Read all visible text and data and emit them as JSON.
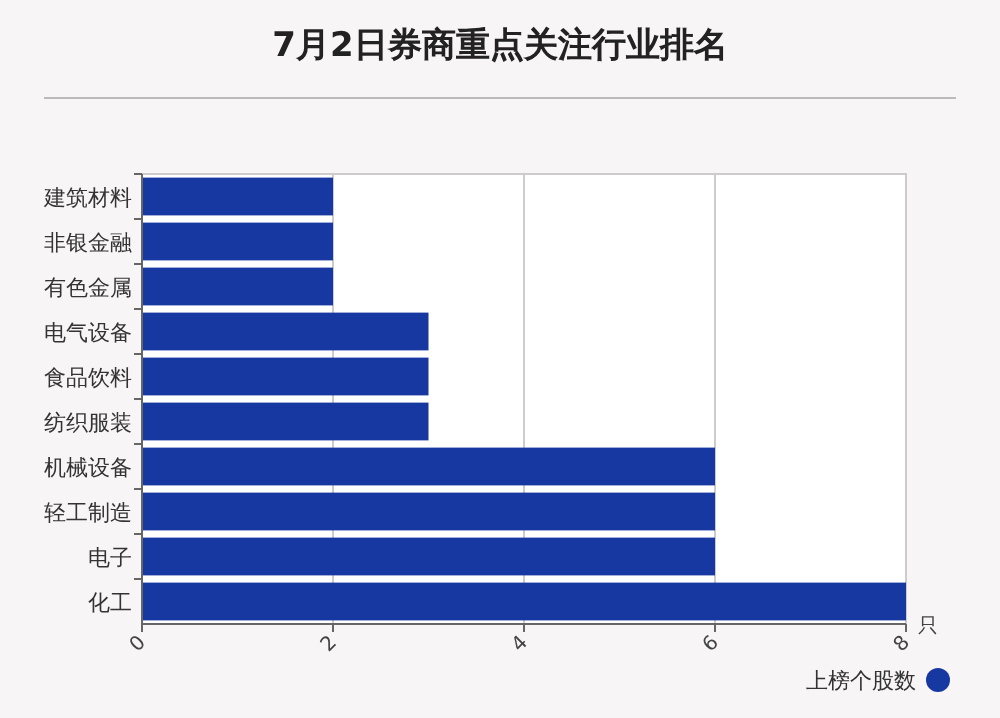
{
  "chart_data": {
    "type": "bar",
    "orientation": "horizontal",
    "title": "7月2日券商重点关注行业排名",
    "xlabel": "只",
    "categories": [
      "建筑材料",
      "非银金融",
      "有色金属",
      "电气设备",
      "食品饮料",
      "纺织服装",
      "机械设备",
      "轻工制造",
      "电子",
      "化工"
    ],
    "series": [
      {
        "name": "上榜个股数",
        "color": "#1738a0",
        "values": [
          2,
          2,
          2,
          3,
          3,
          3,
          6,
          6,
          6,
          8
        ]
      }
    ],
    "xlim": [
      0,
      8
    ],
    "xticks": [
      0,
      2,
      4,
      6,
      8
    ],
    "grid": "x",
    "legend": "bottom right"
  }
}
